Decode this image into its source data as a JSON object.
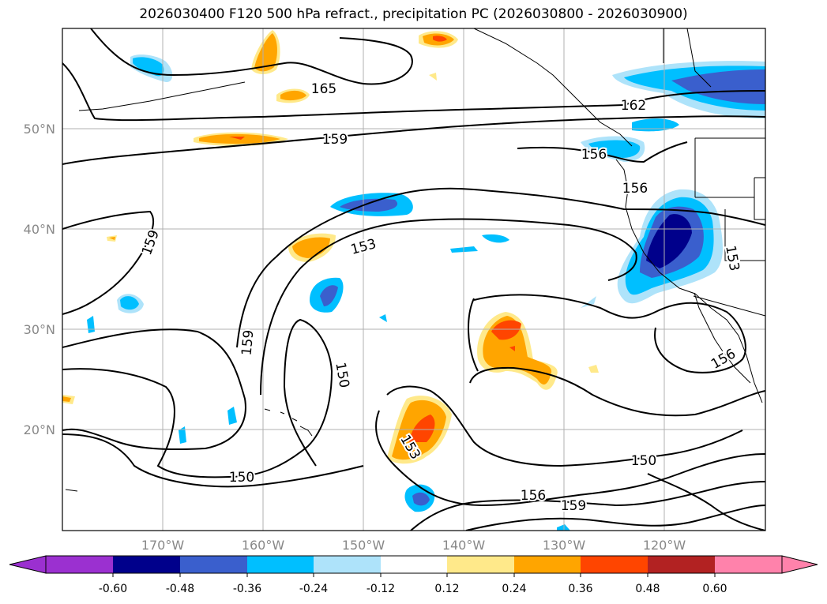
{
  "title": "2026030400 F120 500 hPa refract., precipitation PC (2026030800 - 2026030900)",
  "axes": {
    "lon_ticks": [
      "170°W",
      "160°W",
      "150°W",
      "140°W",
      "130°W",
      "120°W"
    ],
    "lat_ticks": [
      "50°N",
      "40°N",
      "30°N",
      "20°N"
    ],
    "extent": {
      "lon": [
        -180,
        -110
      ],
      "lat": [
        10,
        60
      ]
    }
  },
  "contour_labels": [
    "165",
    "162",
    "159",
    "159",
    "159",
    "156",
    "156",
    "156",
    "156",
    "153",
    "153",
    "153",
    "150",
    "150",
    "150",
    "159"
  ],
  "colorbar": {
    "ticks": [
      "-0.60",
      "-0.48",
      "-0.36",
      "-0.24",
      "-0.12",
      "0.12",
      "0.24",
      "0.36",
      "0.48",
      "0.60"
    ],
    "colors": [
      "#9b30d0",
      "#00008b",
      "#3a5fcd",
      "#00bfff",
      "#aee3fa",
      "#ffffff",
      "#ffe98a",
      "#ffa500",
      "#ff4500",
      "#b22222",
      "#ff82ab"
    ]
  },
  "chart_data": {
    "type": "map",
    "title": "2026030400 F120 500 hPa refract., precipitation PC (2026030800 - 2026030900)",
    "projection": "PlateCarree",
    "lon_range": [
      -180,
      -110
    ],
    "lat_range": [
      10,
      60
    ],
    "grid": true,
    "contour_levels": [
      150,
      153,
      156,
      159,
      162,
      165
    ],
    "colorbar_levels": [
      -0.6,
      -0.48,
      -0.36,
      -0.24,
      -0.12,
      0.12,
      0.24,
      0.36,
      0.48,
      0.6
    ]
  }
}
